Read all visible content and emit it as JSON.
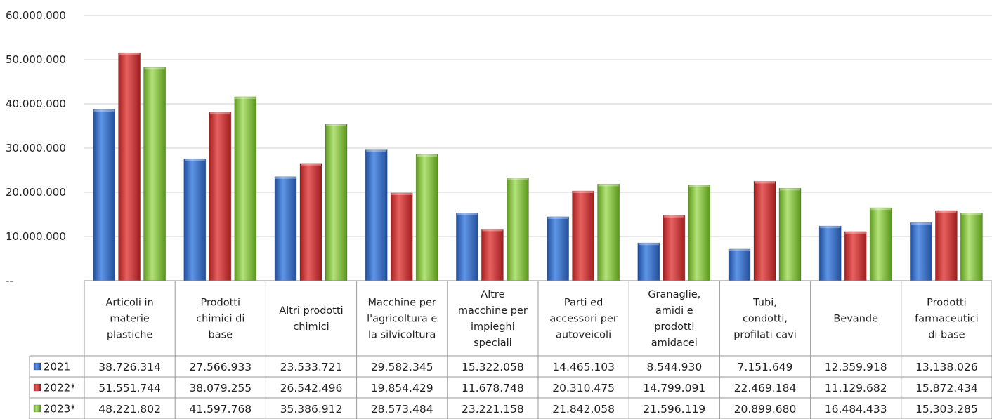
{
  "chart_data": {
    "type": "bar",
    "title": "",
    "xlabel": "",
    "ylabel": "",
    "ylim": [
      0,
      60000000
    ],
    "yticks": [
      0,
      10000000,
      20000000,
      30000000,
      40000000,
      50000000,
      60000000
    ],
    "ytick_labels": [
      "--",
      "10.000.000",
      "20.000.000",
      "30.000.000",
      "40.000.000",
      "50.000.000",
      "60.000.000"
    ],
    "grid": true,
    "legend": "data-table-left",
    "categories": [
      "Articoli in materie plastiche",
      "Prodotti chimici di base",
      "Altri prodotti chimici",
      "Macchine per l'agricoltura e la silvicoltura",
      "Altre macchine per impieghi speciali",
      "Parti ed accessori per autoveicoli",
      "Granaglie, amidi e prodotti amidacei",
      "Tubi, condotti, profilati cavi",
      "Bevande",
      "Prodotti farmaceutici di base"
    ],
    "category_lines": [
      [
        "Articoli in",
        "materie",
        "plastiche"
      ],
      [
        "Prodotti",
        "chimici di",
        "base"
      ],
      [
        "Altri prodotti",
        "chimici"
      ],
      [
        "Macchine per",
        "l'agricoltura e",
        "la silvicoltura"
      ],
      [
        "Altre",
        "macchine per",
        "impieghi",
        "speciali"
      ],
      [
        "Parti ed",
        "accessori per",
        "autoveicoli"
      ],
      [
        "Granaglie,",
        "amidi e",
        "prodotti",
        "amidacei"
      ],
      [
        "Tubi,",
        "condotti,",
        "profilati cavi"
      ],
      [
        "Bevande"
      ],
      [
        "Prodotti",
        "farmaceutici",
        "di base"
      ]
    ],
    "series": [
      {
        "name": "2021",
        "color": "#3f74c7",
        "values": [
          38726314,
          27566933,
          23533721,
          29582345,
          15322058,
          14465103,
          8544930,
          7151649,
          12359918,
          13138026
        ],
        "labels": [
          "38.726.314",
          "27.566.933",
          "23.533.721",
          "29.582.345",
          "15.322.058",
          "14.465.103",
          "8.544.930",
          "7.151.649",
          "12.359.918",
          "13.138.026"
        ]
      },
      {
        "name": "2022*",
        "color": "#d43b3b",
        "values": [
          51551744,
          38079255,
          26542496,
          19854429,
          11678748,
          20310475,
          14799091,
          22469184,
          11129682,
          15872434
        ],
        "labels": [
          "51.551.744",
          "38.079.255",
          "26.542.496",
          "19.854.429",
          "11.678.748",
          "20.310.475",
          "14.799.091",
          "22.469.184",
          "11.129.682",
          "15.872.434"
        ]
      },
      {
        "name": "2023*",
        "color": "#8cc63f",
        "values": [
          48221802,
          41597768,
          35386912,
          28573484,
          23221158,
          21842058,
          21596119,
          20899680,
          16484433,
          15303285
        ],
        "labels": [
          "48.221.802",
          "41.597.768",
          "35.386.912",
          "28.573.484",
          "23.221.158",
          "21.842.058",
          "21.596.119",
          "20.899.680",
          "16.484.433",
          "15.303.285"
        ]
      }
    ]
  }
}
